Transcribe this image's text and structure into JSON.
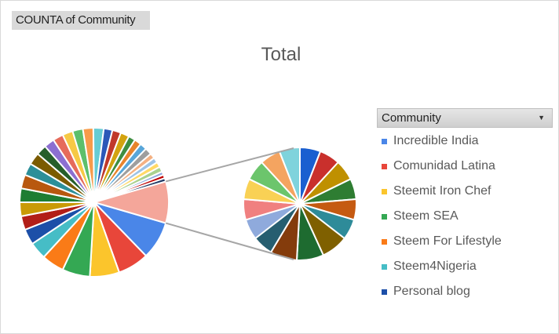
{
  "field_button": {
    "label": "COUNTA of Community"
  },
  "chart_data": {
    "type": "pie",
    "subtype": "pie-of-pie",
    "title": "Total",
    "legend": {
      "title": "Community",
      "position": "right"
    },
    "main_slices": [
      {
        "name": "Incredible India",
        "value": 11,
        "color": "#4a86e8"
      },
      {
        "name": "Comunidad Latina",
        "value": 9,
        "color": "#e8463a"
      },
      {
        "name": "Steemit Iron Chef",
        "value": 8.5,
        "color": "#fbc52c"
      },
      {
        "name": "Steem SEA",
        "value": 8,
        "color": "#34a853"
      },
      {
        "name": "Steem For Lifestyle",
        "value": 6.5,
        "color": "#fa7b17"
      },
      {
        "name": "Steem4Nigeria",
        "value": 5,
        "color": "#46bdc6"
      },
      {
        "name": "Personal blog",
        "value": 4.5,
        "color": "#1c4fa8"
      },
      {
        "name": "",
        "value": 4,
        "color": "#b21e18"
      },
      {
        "name": "",
        "value": 4,
        "color": "#c99a06"
      },
      {
        "name": "",
        "value": 4,
        "color": "#1e7d32"
      },
      {
        "name": "",
        "value": 4,
        "color": "#b8580f"
      },
      {
        "name": "",
        "value": 3.5,
        "color": "#2c8f99"
      },
      {
        "name": "",
        "value": 3.5,
        "color": "#7b5b00"
      },
      {
        "name": "",
        "value": 3,
        "color": "#265e2a"
      },
      {
        "name": "",
        "value": 3,
        "color": "#8c6fd1"
      },
      {
        "name": "",
        "value": 3,
        "color": "#e66b5b"
      },
      {
        "name": "",
        "value": 3,
        "color": "#f6c945"
      },
      {
        "name": "",
        "value": 3,
        "color": "#5cbf6b"
      },
      {
        "name": "",
        "value": 3,
        "color": "#f79b4a"
      },
      {
        "name": "",
        "value": 3,
        "color": "#66ccd4"
      },
      {
        "name": "",
        "value": 2.5,
        "color": "#2b58b8"
      },
      {
        "name": "",
        "value": 2.5,
        "color": "#c0392b"
      },
      {
        "name": "",
        "value": 2.5,
        "color": "#d3a310"
      },
      {
        "name": "",
        "value": 2,
        "color": "#3e8e41"
      },
      {
        "name": "",
        "value": 2,
        "color": "#e8842c"
      },
      {
        "name": "",
        "value": 2,
        "color": "#58a6d9"
      },
      {
        "name": "",
        "value": 2,
        "color": "#9e9e9e"
      },
      {
        "name": "",
        "value": 1.5,
        "color": "#f4b183"
      },
      {
        "name": "",
        "value": 1.5,
        "color": "#9dc3e6"
      },
      {
        "name": "",
        "value": 1.5,
        "color": "#ffd966"
      },
      {
        "name": "",
        "value": 1.5,
        "color": "#a9d18e"
      },
      {
        "name": "",
        "value": 1,
        "color": "#8faadc"
      },
      {
        "name": "",
        "value": 1,
        "color": "#c00000"
      },
      {
        "name": "",
        "value": 1,
        "color": "#1f3864"
      }
    ],
    "other_slice": {
      "value": 12,
      "color": "#f4a69a"
    },
    "secondary_slices": [
      {
        "value": 1,
        "color": "#1a5fd0"
      },
      {
        "value": 1,
        "color": "#c9302c"
      },
      {
        "value": 1,
        "color": "#bf9000"
      },
      {
        "value": 1,
        "color": "#2e7d32"
      },
      {
        "value": 1,
        "color": "#c55a11"
      },
      {
        "value": 1,
        "color": "#2e8b99"
      },
      {
        "value": 1.3,
        "color": "#7f6000"
      },
      {
        "value": 1.3,
        "color": "#1e6b30"
      },
      {
        "value": 1.3,
        "color": "#843c0c"
      },
      {
        "value": 1,
        "color": "#265e70"
      },
      {
        "value": 1,
        "color": "#8faadc"
      },
      {
        "value": 1,
        "color": "#f08080"
      },
      {
        "value": 1,
        "color": "#f9d155"
      },
      {
        "value": 1,
        "color": "#6cc56c"
      },
      {
        "value": 1,
        "color": "#f4a460"
      },
      {
        "value": 1,
        "color": "#7fd3dc"
      }
    ]
  }
}
